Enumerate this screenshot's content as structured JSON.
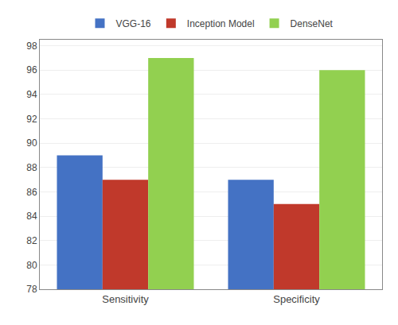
{
  "chart_data": {
    "type": "bar",
    "categories": [
      "Sensitivity",
      "Specificity"
    ],
    "series": [
      {
        "name": "VGG-16",
        "color": "#4472C4",
        "values": [
          89,
          87
        ]
      },
      {
        "name": "Inception Model",
        "color": "#C0392B",
        "values": [
          87,
          85
        ]
      },
      {
        "name": "DenseNet",
        "color": "#92D050",
        "values": [
          97,
          96
        ]
      }
    ],
    "ylim": [
      78,
      98.5
    ],
    "yticks": [
      78,
      80,
      82,
      84,
      86,
      88,
      90,
      92,
      94,
      96,
      98
    ],
    "grid": true,
    "legend": "top"
  }
}
